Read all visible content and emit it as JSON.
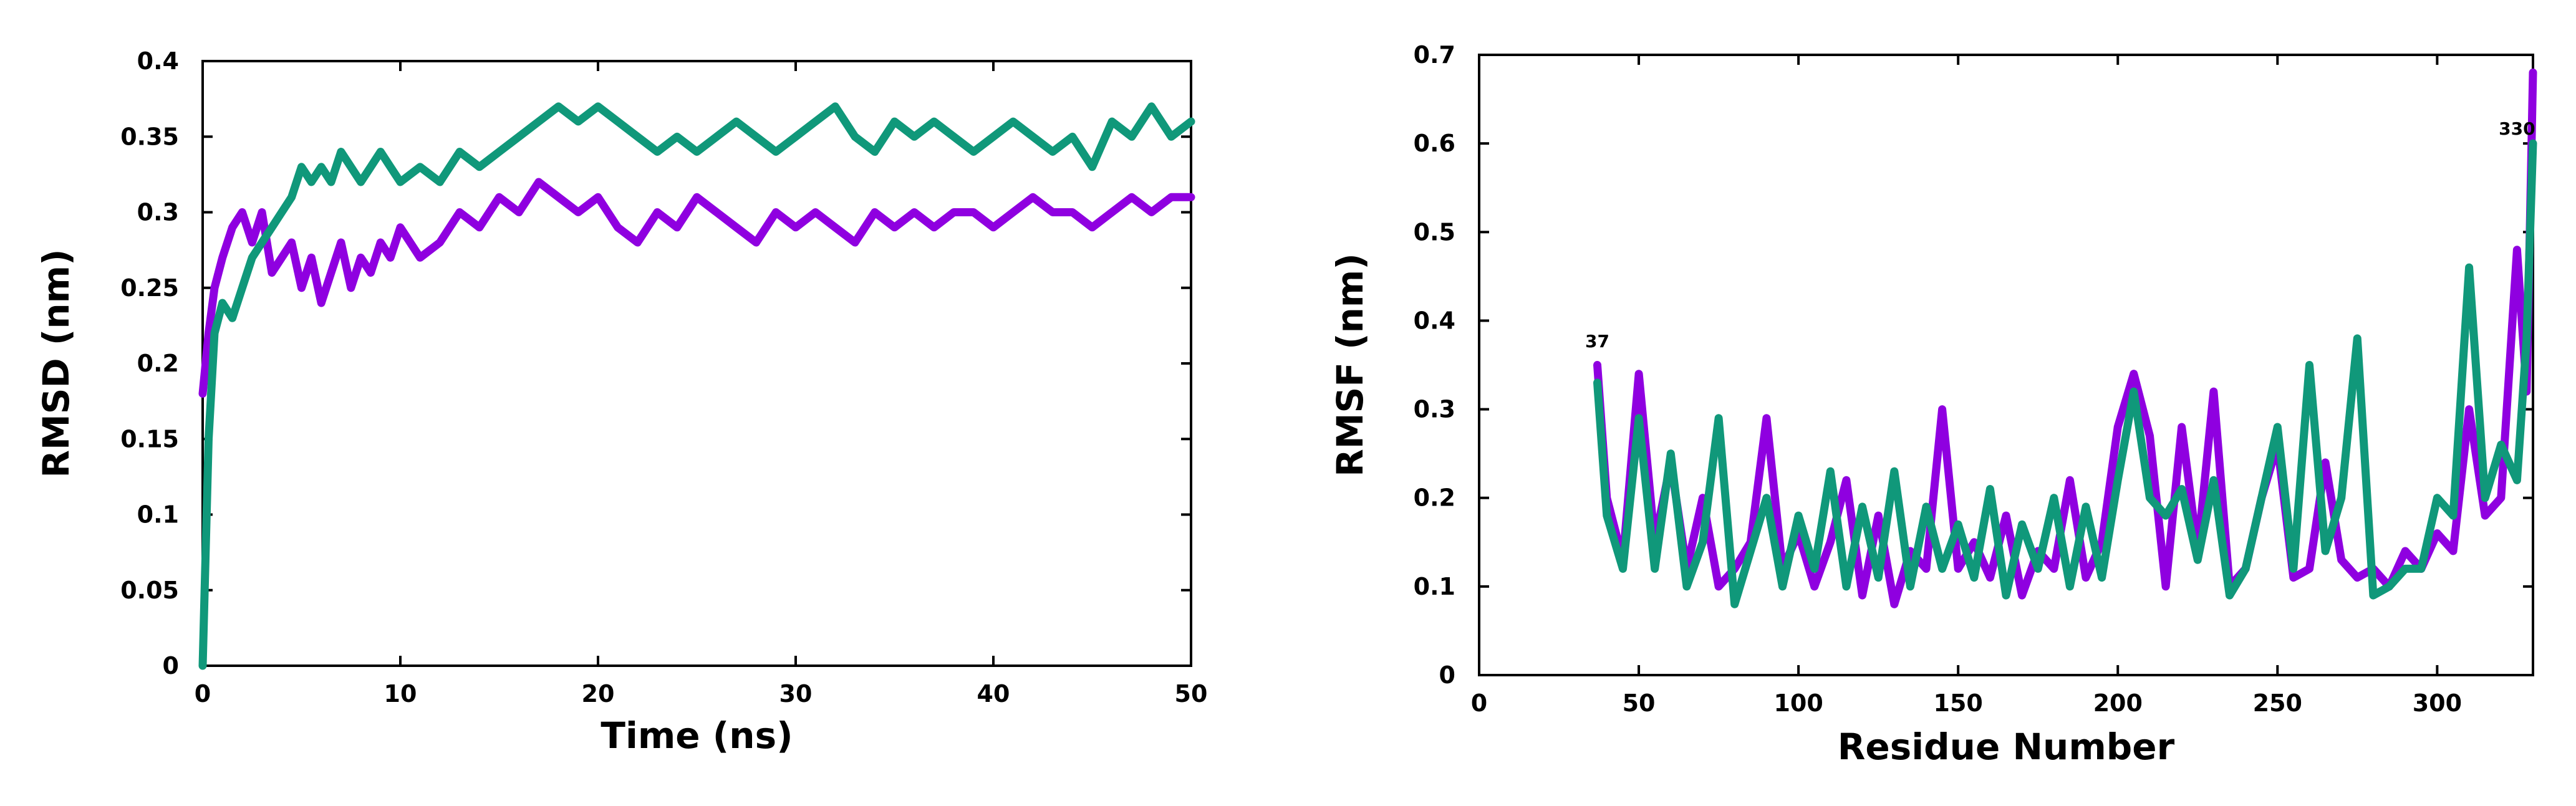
{
  "colors": {
    "series_a": "#8f00e0",
    "series_b": "#10987a"
  },
  "chart_data": [
    {
      "type": "line",
      "xlabel": "Time (ns)",
      "ylabel": "RMSD (nm)",
      "xlim": [
        0,
        50
      ],
      "ylim": [
        0,
        0.4
      ],
      "xticks": [
        "0",
        "10",
        "20",
        "30",
        "40",
        "50"
      ],
      "yticks": [
        "0",
        "0.05",
        "0.1",
        "0.15",
        "0.2",
        "0.25",
        "0.3",
        "0.35",
        "0.4"
      ],
      "grid": false,
      "series": [
        {
          "color": "#8f00e0",
          "x": [
            0,
            0.3,
            0.6,
            1,
            1.5,
            2,
            2.5,
            3,
            3.5,
            4,
            4.5,
            5,
            5.5,
            6,
            6.5,
            7,
            7.5,
            8,
            8.5,
            9,
            9.5,
            10,
            11,
            12,
            13,
            14,
            15,
            16,
            17,
            18,
            19,
            20,
            21,
            22,
            23,
            24,
            25,
            26,
            27,
            28,
            29,
            30,
            31,
            32,
            33,
            34,
            35,
            36,
            37,
            38,
            39,
            40,
            41,
            42,
            43,
            44,
            45,
            46,
            47,
            48,
            49,
            50
          ],
          "y": [
            0.18,
            0.22,
            0.25,
            0.27,
            0.29,
            0.3,
            0.28,
            0.3,
            0.26,
            0.27,
            0.28,
            0.25,
            0.27,
            0.24,
            0.26,
            0.28,
            0.25,
            0.27,
            0.26,
            0.28,
            0.27,
            0.29,
            0.27,
            0.28,
            0.3,
            0.29,
            0.31,
            0.3,
            0.32,
            0.31,
            0.3,
            0.31,
            0.29,
            0.28,
            0.3,
            0.29,
            0.31,
            0.3,
            0.29,
            0.28,
            0.3,
            0.29,
            0.3,
            0.29,
            0.28,
            0.3,
            0.29,
            0.3,
            0.29,
            0.3,
            0.3,
            0.29,
            0.3,
            0.31,
            0.3,
            0.3,
            0.29,
            0.3,
            0.31,
            0.3,
            0.31,
            0.31
          ]
        },
        {
          "color": "#10987a",
          "x": [
            0,
            0.3,
            0.6,
            1,
            1.5,
            2,
            2.5,
            3,
            3.5,
            4,
            4.5,
            5,
            5.5,
            6,
            6.5,
            7,
            7.5,
            8,
            8.5,
            9,
            9.5,
            10,
            11,
            12,
            13,
            14,
            15,
            16,
            17,
            18,
            19,
            20,
            21,
            22,
            23,
            24,
            25,
            26,
            27,
            28,
            29,
            30,
            31,
            32,
            33,
            34,
            35,
            36,
            37,
            38,
            39,
            40,
            41,
            42,
            43,
            44,
            45,
            46,
            47,
            48,
            49,
            50
          ],
          "y": [
            0,
            0.15,
            0.22,
            0.24,
            0.23,
            0.25,
            0.27,
            0.28,
            0.29,
            0.3,
            0.31,
            0.33,
            0.32,
            0.33,
            0.32,
            0.34,
            0.33,
            0.32,
            0.33,
            0.34,
            0.33,
            0.32,
            0.33,
            0.32,
            0.34,
            0.33,
            0.34,
            0.35,
            0.36,
            0.37,
            0.36,
            0.37,
            0.36,
            0.35,
            0.34,
            0.35,
            0.34,
            0.35,
            0.36,
            0.35,
            0.34,
            0.35,
            0.36,
            0.37,
            0.35,
            0.34,
            0.36,
            0.35,
            0.36,
            0.35,
            0.34,
            0.35,
            0.36,
            0.35,
            0.34,
            0.35,
            0.33,
            0.36,
            0.35,
            0.37,
            0.35,
            0.36
          ]
        }
      ]
    },
    {
      "type": "line",
      "xlabel": "Residue Number",
      "ylabel": "RMSF (nm)",
      "xlim": [
        0,
        330
      ],
      "ylim": [
        0,
        0.7
      ],
      "xticks": [
        "0",
        "50",
        "100",
        "150",
        "200",
        "250",
        "300"
      ],
      "yticks": [
        "0",
        "0.1",
        "0.2",
        "0.3",
        "0.4",
        "0.5",
        "0.6",
        "0.7"
      ],
      "grid": false,
      "annotations": [
        {
          "text": "37",
          "x": 37,
          "y": 0.37
        },
        {
          "text": "330",
          "x": 325,
          "y": 0.61
        }
      ],
      "series": [
        {
          "color": "#8f00e0",
          "x": [
            37,
            40,
            45,
            50,
            55,
            60,
            65,
            70,
            75,
            80,
            85,
            90,
            95,
            100,
            105,
            110,
            115,
            120,
            125,
            130,
            135,
            140,
            145,
            150,
            155,
            160,
            165,
            170,
            175,
            180,
            185,
            190,
            195,
            200,
            205,
            210,
            215,
            220,
            225,
            230,
            235,
            240,
            245,
            250,
            255,
            260,
            265,
            270,
            275,
            280,
            285,
            290,
            295,
            300,
            305,
            310,
            315,
            320,
            325,
            328,
            330
          ],
          "y": [
            0.35,
            0.2,
            0.13,
            0.34,
            0.15,
            0.24,
            0.12,
            0.2,
            0.1,
            0.12,
            0.15,
            0.29,
            0.12,
            0.16,
            0.1,
            0.15,
            0.22,
            0.09,
            0.18,
            0.08,
            0.14,
            0.12,
            0.3,
            0.12,
            0.15,
            0.11,
            0.18,
            0.09,
            0.14,
            0.12,
            0.22,
            0.11,
            0.15,
            0.28,
            0.34,
            0.27,
            0.1,
            0.28,
            0.14,
            0.32,
            0.1,
            0.12,
            0.2,
            0.26,
            0.11,
            0.12,
            0.24,
            0.13,
            0.11,
            0.12,
            0.1,
            0.14,
            0.12,
            0.16,
            0.14,
            0.3,
            0.18,
            0.2,
            0.48,
            0.32,
            0.68
          ]
        },
        {
          "color": "#10987a",
          "x": [
            37,
            40,
            45,
            50,
            55,
            60,
            65,
            70,
            75,
            80,
            85,
            90,
            95,
            100,
            105,
            110,
            115,
            120,
            125,
            130,
            135,
            140,
            145,
            150,
            155,
            160,
            165,
            170,
            175,
            180,
            185,
            190,
            195,
            200,
            205,
            210,
            215,
            220,
            225,
            230,
            235,
            240,
            245,
            250,
            255,
            260,
            265,
            270,
            275,
            280,
            285,
            290,
            295,
            300,
            305,
            310,
            315,
            320,
            325,
            328,
            330
          ],
          "y": [
            0.33,
            0.18,
            0.12,
            0.29,
            0.12,
            0.25,
            0.1,
            0.15,
            0.29,
            0.08,
            0.14,
            0.2,
            0.1,
            0.18,
            0.12,
            0.23,
            0.1,
            0.19,
            0.11,
            0.23,
            0.1,
            0.19,
            0.12,
            0.17,
            0.11,
            0.21,
            0.09,
            0.17,
            0.12,
            0.2,
            0.1,
            0.19,
            0.11,
            0.22,
            0.32,
            0.2,
            0.18,
            0.21,
            0.13,
            0.22,
            0.09,
            0.12,
            0.2,
            0.28,
            0.12,
            0.35,
            0.14,
            0.2,
            0.38,
            0.09,
            0.1,
            0.12,
            0.12,
            0.2,
            0.18,
            0.46,
            0.2,
            0.26,
            0.22,
            0.38,
            0.6
          ]
        }
      ]
    }
  ]
}
